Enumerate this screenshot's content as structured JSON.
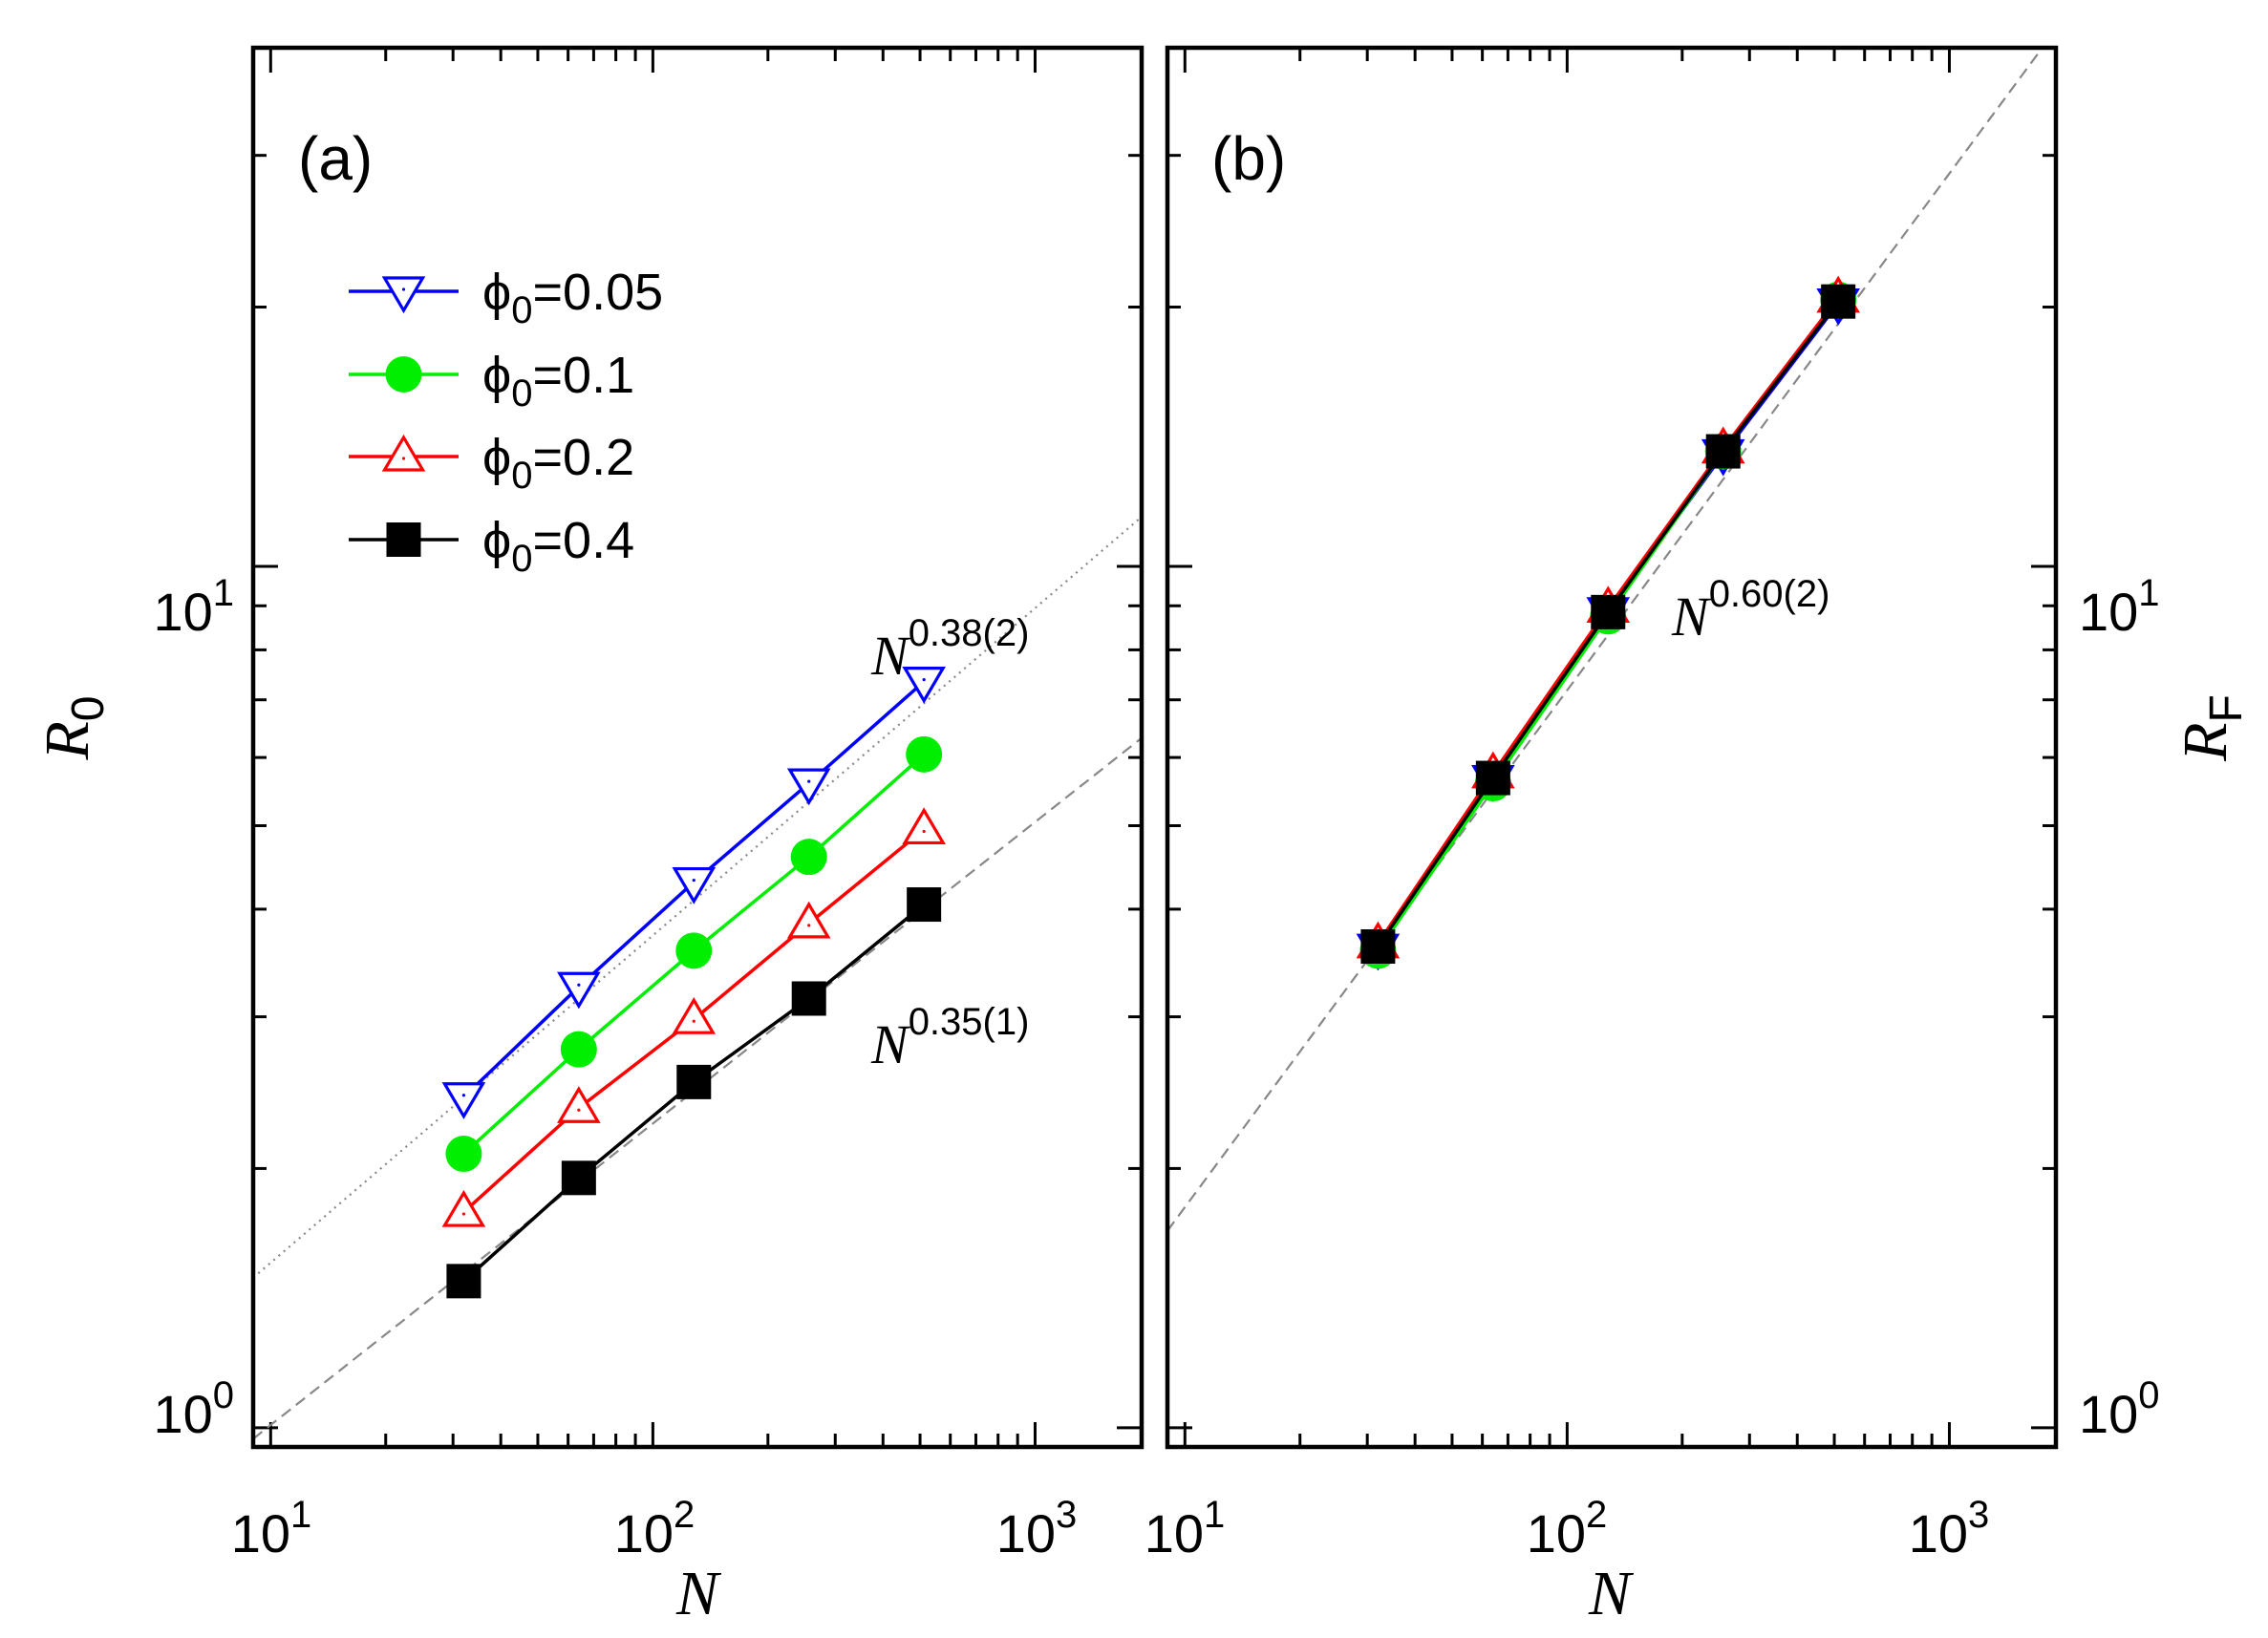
{
  "chart_data": [
    {
      "panel": "a",
      "type": "line",
      "panel_label": "(a)",
      "xlabel": "N",
      "ylabel": "R",
      "ylabel_sub": "0",
      "xscale": "log",
      "yscale": "log",
      "xlim": [
        9.0,
        1900.0
      ],
      "ylim": [
        0.95,
        40.0
      ],
      "x_ticks": [
        {
          "base": "10",
          "exp": "1",
          "value": 10
        },
        {
          "base": "10",
          "exp": "2",
          "value": 100
        },
        {
          "base": "10",
          "exp": "3",
          "value": 1000
        }
      ],
      "y_ticks": [
        {
          "base": "10",
          "exp": "0",
          "value": 1
        },
        {
          "base": "10",
          "exp": "1",
          "value": 10
        }
      ],
      "legend_position": "top-left",
      "series": [
        {
          "name": "ϕ0=0.05",
          "label_main": "ϕ",
          "label_sub": "0",
          "label_rest": "=0.05",
          "color": "#0000ff",
          "marker": "triangle-down-open",
          "x": [
            32,
            64,
            128,
            256,
            512
          ],
          "y": [
            2.42,
            3.25,
            4.3,
            5.6,
            7.35
          ]
        },
        {
          "name": "ϕ0=0.1",
          "label_main": "ϕ",
          "label_sub": "0",
          "label_rest": "=0.1",
          "color": "#00ee00",
          "marker": "circle-filled",
          "x": [
            32,
            64,
            128,
            256,
            512
          ],
          "y": [
            2.08,
            2.75,
            3.58,
            4.6,
            6.05
          ]
        },
        {
          "name": "ϕ0=0.2",
          "label_main": "ϕ",
          "label_sub": "0",
          "label_rest": "=0.2",
          "color": "#ff0000",
          "marker": "triangle-up-open",
          "x": [
            32,
            64,
            128,
            256,
            512
          ],
          "y": [
            1.78,
            2.35,
            2.98,
            3.85,
            4.95
          ]
        },
        {
          "name": "ϕ0=0.4",
          "label_main": "ϕ",
          "label_sub": "0",
          "label_rest": "=0.4",
          "color": "#000000",
          "marker": "square-filled",
          "x": [
            32,
            64,
            128,
            256,
            512
          ],
          "y": [
            1.48,
            1.95,
            2.52,
            3.15,
            4.05
          ]
        }
      ],
      "fit_lines": [
        {
          "label_base": "N",
          "label_exp": "0.38(2)",
          "exponent": 0.38,
          "prefactor": 0.648,
          "style": "dotted",
          "color": "#888888"
        },
        {
          "label_base": "N",
          "label_exp": "0.35(1)",
          "exponent": 0.35,
          "prefactor": 0.45,
          "style": "dashed",
          "color": "#888888"
        }
      ]
    },
    {
      "panel": "b",
      "type": "line",
      "panel_label": "(b)",
      "xlabel": "N",
      "ylabel": "R",
      "ylabel_sub": "F",
      "xscale": "log",
      "yscale": "log",
      "xlim": [
        9.0,
        1900.0
      ],
      "ylim": [
        0.95,
        40.0
      ],
      "x_ticks": [
        {
          "base": "10",
          "exp": "1",
          "value": 10
        },
        {
          "base": "10",
          "exp": "2",
          "value": 100
        },
        {
          "base": "10",
          "exp": "3",
          "value": 1000
        }
      ],
      "y_ticks": [
        {
          "base": "10",
          "exp": "0",
          "value": 1
        },
        {
          "base": "10",
          "exp": "1",
          "value": 10
        }
      ],
      "series": [
        {
          "name": "ϕ0=0.05",
          "color": "#0000ff",
          "marker": "triangle-down-open",
          "x": [
            32,
            64,
            128,
            256,
            512
          ],
          "y": [
            3.6,
            5.65,
            8.85,
            13.5,
            20.2
          ]
        },
        {
          "name": "ϕ0=0.1",
          "color": "#00ee00",
          "marker": "circle-filled",
          "x": [
            32,
            64,
            128,
            256,
            512
          ],
          "y": [
            3.58,
            5.6,
            8.75,
            13.6,
            20.4
          ]
        },
        {
          "name": "ϕ0=0.2",
          "color": "#ff0000",
          "marker": "triangle-up-open",
          "x": [
            32,
            64,
            128,
            256,
            512
          ],
          "y": [
            3.65,
            5.75,
            8.95,
            13.7,
            20.5
          ]
        },
        {
          "name": "ϕ0=0.4",
          "color": "#000000",
          "marker": "square-filled",
          "x": [
            32,
            64,
            128,
            256,
            512
          ],
          "y": [
            3.62,
            5.68,
            8.85,
            13.6,
            20.3
          ]
        }
      ],
      "fit_lines": [
        {
          "label_base": "N",
          "label_exp": "0.60(2)",
          "exponent": 0.6,
          "prefactor": 0.453,
          "style": "dashed",
          "color": "#888888"
        }
      ]
    }
  ]
}
